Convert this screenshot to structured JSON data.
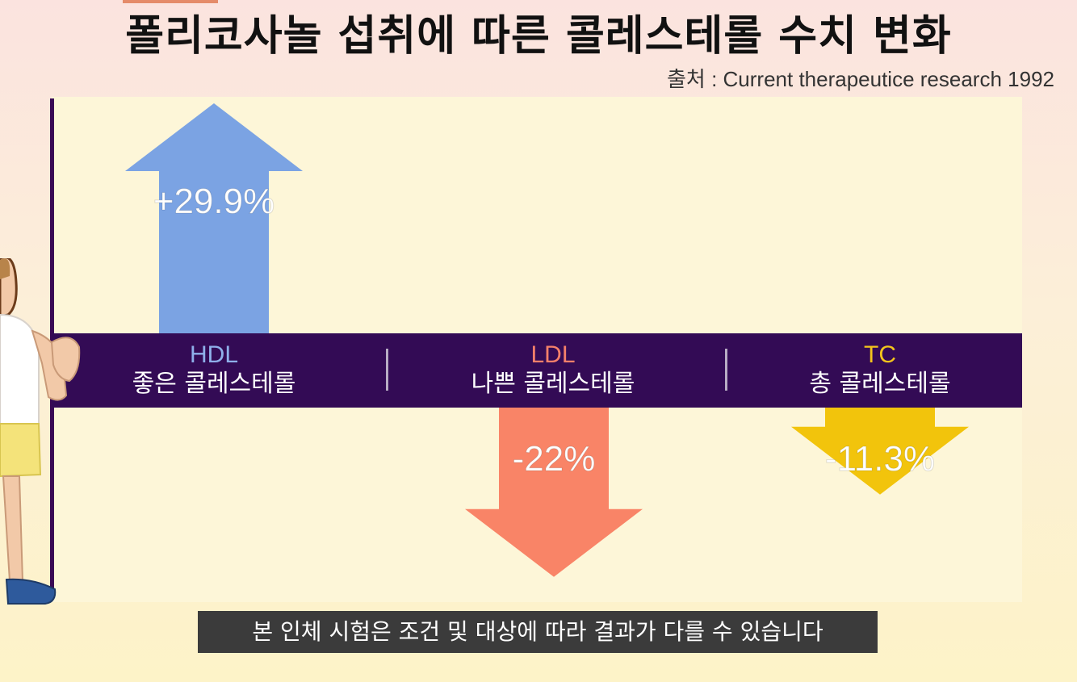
{
  "header": {
    "title": "폴리코사놀 섭취에 따른 콜레스테롤 수치 변화",
    "source": "출처 : Current therapeutice research 1992"
  },
  "chart_data": {
    "type": "bar",
    "categories": [
      {
        "abbr": "HDL",
        "label": "좋은 콜레스테롤",
        "color": "#7ba3e3",
        "label_color": "#8fb0ea"
      },
      {
        "abbr": "LDL",
        "label": "나쁜 콜레스테롤",
        "color": "#f98467",
        "label_color": "#f5806a"
      },
      {
        "abbr": "TC",
        "label": "총 콜레스테롤",
        "color": "#f2c40c",
        "label_color": "#f4c51c"
      }
    ],
    "values": [
      29.9,
      -22,
      -11.3
    ],
    "data_labels": [
      "+29.9%",
      "-22%",
      "-11.3%"
    ],
    "unit": "%",
    "ylim": [
      -30,
      30
    ]
  },
  "caption": {
    "text": "본 인체 시험은 조건 및 대상에 따라 결과가 다를 수 있습니다"
  },
  "colors": {
    "band": "#330b55",
    "axis": "#3a0a55",
    "panel": "#fdf6d8"
  }
}
